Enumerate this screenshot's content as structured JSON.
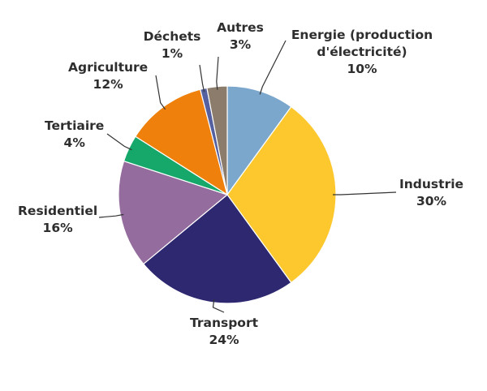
{
  "chart_data": {
    "type": "pie",
    "start_angle_deg": 0,
    "direction": "clockwise",
    "slices": [
      {
        "lines": [
          "Energie (production",
          "d'électricité)"
        ],
        "value_label": "10%",
        "value": 10,
        "color": "#7ba7cc"
      },
      {
        "lines": [
          "Industrie"
        ],
        "value_label": "30%",
        "value": 30,
        "color": "#fcc82e"
      },
      {
        "lines": [
          "Transport"
        ],
        "value_label": "24%",
        "value": 24,
        "color": "#2e2870"
      },
      {
        "lines": [
          "Residentiel"
        ],
        "value_label": "16%",
        "value": 16,
        "color": "#946c9e"
      },
      {
        "lines": [
          "Tertiaire"
        ],
        "value_label": "4%",
        "value": 4,
        "color": "#16a86a"
      },
      {
        "lines": [
          "Agriculture"
        ],
        "value_label": "12%",
        "value": 12,
        "color": "#ef800c"
      },
      {
        "lines": [
          "Déchets"
        ],
        "value_label": "1%",
        "value": 1,
        "color": "#5560a0"
      },
      {
        "lines": [
          "Autres"
        ],
        "value_label": "3%",
        "value": 3,
        "color": "#8b7c6c"
      }
    ]
  }
}
